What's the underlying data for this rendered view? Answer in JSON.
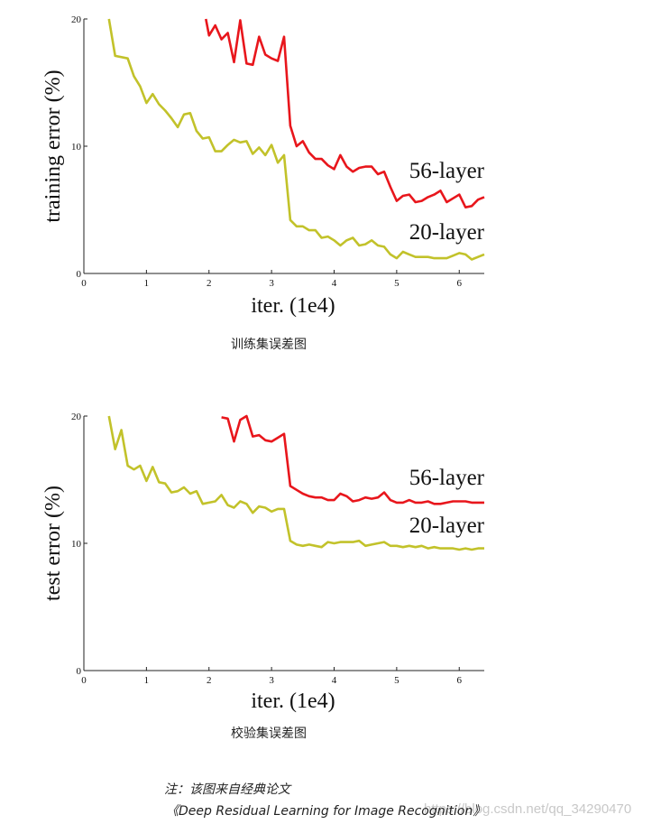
{
  "chart_data": [
    {
      "type": "line",
      "xlabel": "iter. (1e4)",
      "ylabel": "training error (%)",
      "xlim": [
        0,
        6.4
      ],
      "ylim": [
        0,
        20
      ],
      "xticks": [
        "0",
        "1",
        "2",
        "3",
        "4",
        "5",
        "6"
      ],
      "yticks": [
        "0",
        "10",
        "20"
      ],
      "grid": false,
      "caption": "训练集误差图",
      "series": [
        {
          "name": "56-layer",
          "color": "#e8161c",
          "x": [
            1.95,
            2.0,
            2.1,
            2.2,
            2.3,
            2.4,
            2.5,
            2.6,
            2.7,
            2.8,
            2.9,
            3.0,
            3.1,
            3.2,
            3.3,
            3.4,
            3.5,
            3.6,
            3.7,
            3.8,
            3.9,
            4.0,
            4.1,
            4.2,
            4.3,
            4.4,
            4.5,
            4.6,
            4.7,
            4.8,
            4.9,
            5.0,
            5.1,
            5.2,
            5.3,
            5.4,
            5.5,
            5.6,
            5.7,
            5.8,
            5.9,
            6.0,
            6.1,
            6.2,
            6.3,
            6.4
          ],
          "y": [
            20,
            18.7,
            19.5,
            18.4,
            18.9,
            16.6,
            19.9,
            16.5,
            16.4,
            18.6,
            17.2,
            16.9,
            16.7,
            18.6,
            11.6,
            10.0,
            10.4,
            9.5,
            9.0,
            9.0,
            8.5,
            8.2,
            9.3,
            8.4,
            8.0,
            8.3,
            8.4,
            8.4,
            7.8,
            8.0,
            6.8,
            5.7,
            6.1,
            6.2,
            5.6,
            5.7,
            6.0,
            6.2,
            6.5,
            5.6,
            5.9,
            6.2,
            5.2,
            5.3,
            5.8,
            6.0
          ]
        },
        {
          "name": "20-layer",
          "color": "#c2c22a",
          "x": [
            0.4,
            0.5,
            0.7,
            0.8,
            0.9,
            1.0,
            1.1,
            1.2,
            1.3,
            1.4,
            1.5,
            1.6,
            1.7,
            1.8,
            1.9,
            2.0,
            2.1,
            2.2,
            2.3,
            2.4,
            2.5,
            2.6,
            2.7,
            2.8,
            2.9,
            3.0,
            3.1,
            3.2,
            3.3,
            3.4,
            3.5,
            3.6,
            3.7,
            3.8,
            3.9,
            4.0,
            4.1,
            4.2,
            4.3,
            4.4,
            4.5,
            4.6,
            4.7,
            4.8,
            4.9,
            5.0,
            5.1,
            5.2,
            5.3,
            5.4,
            5.5,
            5.6,
            5.7,
            5.8,
            5.9,
            6.0,
            6.1,
            6.2,
            6.3,
            6.4
          ],
          "y": [
            20,
            17.1,
            16.9,
            15.5,
            14.7,
            13.4,
            14.1,
            13.3,
            12.8,
            12.2,
            11.5,
            12.5,
            12.6,
            11.2,
            10.6,
            10.7,
            9.6,
            9.6,
            10.1,
            10.5,
            10.3,
            10.4,
            9.4,
            9.9,
            9.3,
            10.1,
            8.7,
            9.3,
            4.2,
            3.7,
            3.7,
            3.4,
            3.4,
            2.8,
            2.9,
            2.6,
            2.2,
            2.6,
            2.8,
            2.2,
            2.3,
            2.6,
            2.2,
            2.1,
            1.5,
            1.2,
            1.7,
            1.5,
            1.3,
            1.3,
            1.3,
            1.2,
            1.2,
            1.2,
            1.4,
            1.6,
            1.5,
            1.1,
            1.3,
            1.5
          ]
        }
      ]
    },
    {
      "type": "line",
      "xlabel": "iter. (1e4)",
      "ylabel": "test error (%)",
      "xlim": [
        0,
        6.4
      ],
      "ylim": [
        0,
        20
      ],
      "xticks": [
        "0",
        "1",
        "2",
        "3",
        "4",
        "5",
        "6"
      ],
      "yticks": [
        "0",
        "10",
        "20"
      ],
      "grid": false,
      "caption": "校验集误差图",
      "series": [
        {
          "name": "56-layer",
          "color": "#e8161c",
          "x": [
            2.2,
            2.3,
            2.4,
            2.5,
            2.6,
            2.7,
            2.8,
            2.9,
            3.0,
            3.1,
            3.2,
            3.3,
            3.4,
            3.5,
            3.6,
            3.7,
            3.8,
            3.9,
            4.0,
            4.1,
            4.2,
            4.3,
            4.4,
            4.5,
            4.6,
            4.7,
            4.8,
            4.9,
            5.0,
            5.1,
            5.2,
            5.3,
            5.4,
            5.5,
            5.6,
            5.7,
            5.8,
            5.9,
            6.0,
            6.1,
            6.2,
            6.3,
            6.4
          ],
          "y": [
            19.9,
            19.8,
            18.0,
            19.7,
            20.0,
            18.4,
            18.5,
            18.1,
            18.0,
            18.3,
            18.6,
            14.5,
            14.2,
            13.9,
            13.7,
            13.6,
            13.6,
            13.4,
            13.4,
            13.9,
            13.7,
            13.3,
            13.4,
            13.6,
            13.5,
            13.6,
            14.0,
            13.4,
            13.2,
            13.2,
            13.4,
            13.2,
            13.2,
            13.3,
            13.1,
            13.1,
            13.2,
            13.3,
            13.3,
            13.3,
            13.2,
            13.2,
            13.2
          ]
        },
        {
          "name": "20-layer",
          "color": "#c2c22a",
          "x": [
            0.4,
            0.5,
            0.6,
            0.7,
            0.8,
            0.9,
            1.0,
            1.1,
            1.2,
            1.3,
            1.4,
            1.5,
            1.6,
            1.7,
            1.8,
            1.9,
            2.0,
            2.1,
            2.2,
            2.3,
            2.4,
            2.5,
            2.6,
            2.7,
            2.8,
            2.9,
            3.0,
            3.1,
            3.2,
            3.3,
            3.4,
            3.5,
            3.6,
            3.7,
            3.8,
            3.9,
            4.0,
            4.1,
            4.2,
            4.3,
            4.4,
            4.5,
            4.6,
            4.7,
            4.8,
            4.9,
            5.0,
            5.1,
            5.2,
            5.3,
            5.4,
            5.5,
            5.6,
            5.7,
            5.8,
            5.9,
            6.0,
            6.1,
            6.2,
            6.3,
            6.4
          ],
          "y": [
            20,
            17.4,
            18.9,
            16.1,
            15.8,
            16.1,
            14.9,
            16.0,
            14.8,
            14.7,
            14.0,
            14.1,
            14.4,
            13.9,
            14.1,
            13.1,
            13.2,
            13.3,
            13.8,
            13.0,
            12.8,
            13.3,
            13.1,
            12.4,
            12.9,
            12.8,
            12.5,
            12.7,
            12.7,
            10.2,
            9.9,
            9.8,
            9.9,
            9.8,
            9.7,
            10.1,
            10.0,
            10.1,
            10.1,
            10.1,
            10.2,
            9.8,
            9.9,
            10.0,
            10.1,
            9.8,
            9.8,
            9.7,
            9.8,
            9.7,
            9.8,
            9.6,
            9.7,
            9.6,
            9.6,
            9.6,
            9.5,
            9.6,
            9.5,
            9.6,
            9.6
          ]
        }
      ]
    }
  ],
  "note": {
    "line1": "注：该图来自经典论文",
    "line2": "《Deep Residual Learning for Image Recognition》"
  },
  "watermark": "https://blog.csdn.net/qq_34290470"
}
